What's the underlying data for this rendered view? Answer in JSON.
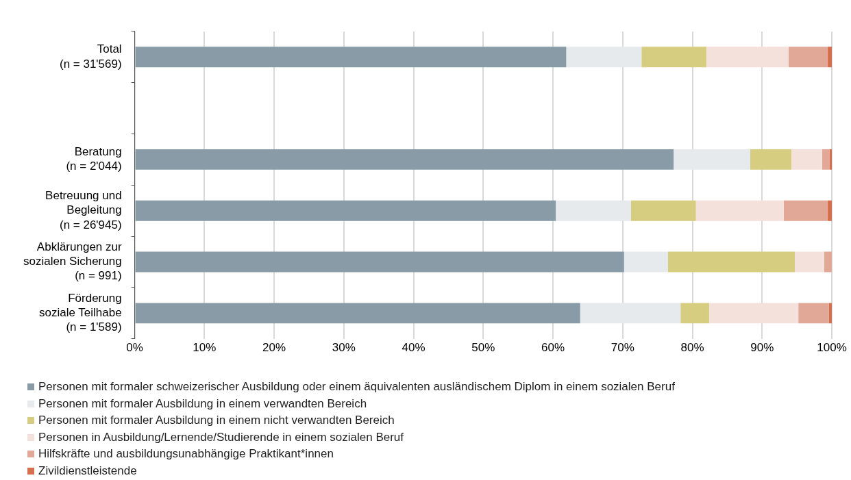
{
  "chart_data": {
    "type": "bar",
    "orientation": "horizontal",
    "stacked": true,
    "grid": "x",
    "legend": "bottom left",
    "categories": [
      "Total\n(n = 31'569)",
      null,
      "Beratung\n(n = 2'044)",
      "Betreuung und\nBegleitung\n(n = 26'945)",
      "Abklärungen zur\nsozialen Sicherung\n(n = 991)",
      "Förderung\nsoziale Teilhabe\n(n = 1'589)"
    ],
    "xlim": [
      0,
      100
    ],
    "xticks": [
      {
        "value": 0,
        "label": "0%"
      },
      {
        "value": 10,
        "label": "10%"
      },
      {
        "value": 20,
        "label": "20%"
      },
      {
        "value": 30,
        "label": "30%"
      },
      {
        "value": 40,
        "label": "40%"
      },
      {
        "value": 50,
        "label": "50%"
      },
      {
        "value": 60,
        "label": "60%"
      },
      {
        "value": 70,
        "label": "70%"
      },
      {
        "value": 80,
        "label": "80%"
      },
      {
        "value": 90,
        "label": "90%"
      },
      {
        "value": 100,
        "label": "100%"
      }
    ],
    "series": [
      {
        "name": "Personen mit formaler schweizerischer Ausbildung oder einem äquivalenten ausländischem Diplom in einem sozialen Beruf",
        "color": "#889ba6",
        "values": [
          61.9,
          null,
          77.3,
          60.4,
          70.2,
          63.9
        ]
      },
      {
        "name": "Personen mit formaler Ausbildung in einem verwandten Bereich",
        "color": "#e6eaed",
        "values": [
          10.8,
          null,
          11.0,
          10.8,
          6.3,
          14.4
        ]
      },
      {
        "name": "Personen mit formaler Ausbildung in einem nicht verwandten Bereich",
        "color": "#d6cd80",
        "values": [
          9.3,
          null,
          5.9,
          9.3,
          18.2,
          4.1
        ]
      },
      {
        "name": "Personen in Ausbildung/Lernende/Studierende in einem sozialen Beruf",
        "color": "#f5e1dc",
        "values": [
          11.8,
          null,
          4.4,
          12.6,
          4.2,
          12.8
        ]
      },
      {
        "name": "Hilfskräfte und ausbildungsunabhängige Praktikant*innen",
        "color": "#e2a897",
        "values": [
          5.6,
          null,
          1.1,
          6.3,
          1.1,
          4.4
        ]
      },
      {
        "name": "Zivildienstleistende",
        "color": "#d46f50",
        "values": [
          0.6,
          null,
          0.3,
          0.6,
          0,
          0.4
        ]
      }
    ]
  }
}
